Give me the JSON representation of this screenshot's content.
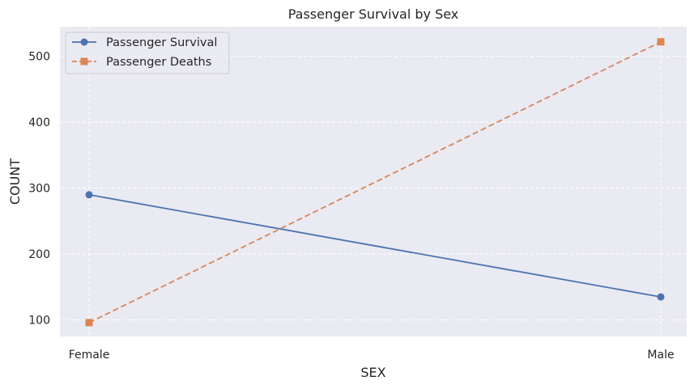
{
  "chart_data": {
    "type": "line",
    "title": "Passenger Survival by Sex",
    "xlabel": "SEX",
    "ylabel": "COUNT",
    "categories": [
      "Female",
      "Male"
    ],
    "ylim": [
      75,
      545
    ],
    "yticks": [
      100,
      200,
      300,
      400,
      500
    ],
    "grid": true,
    "legend_position": "top-left",
    "series": [
      {
        "name": "Passenger Survival",
        "values": [
          290,
          135
        ],
        "color": "#4c72b0",
        "marker": "circle",
        "line_style": "solid"
      },
      {
        "name": "Passenger Deaths",
        "values": [
          96,
          522
        ],
        "color": "#dd8452",
        "marker": "square",
        "line_style": "dashed"
      }
    ]
  },
  "colors": {
    "plot_background": "#eaeaf2",
    "grid": "#ffffff",
    "text": "#262626"
  }
}
